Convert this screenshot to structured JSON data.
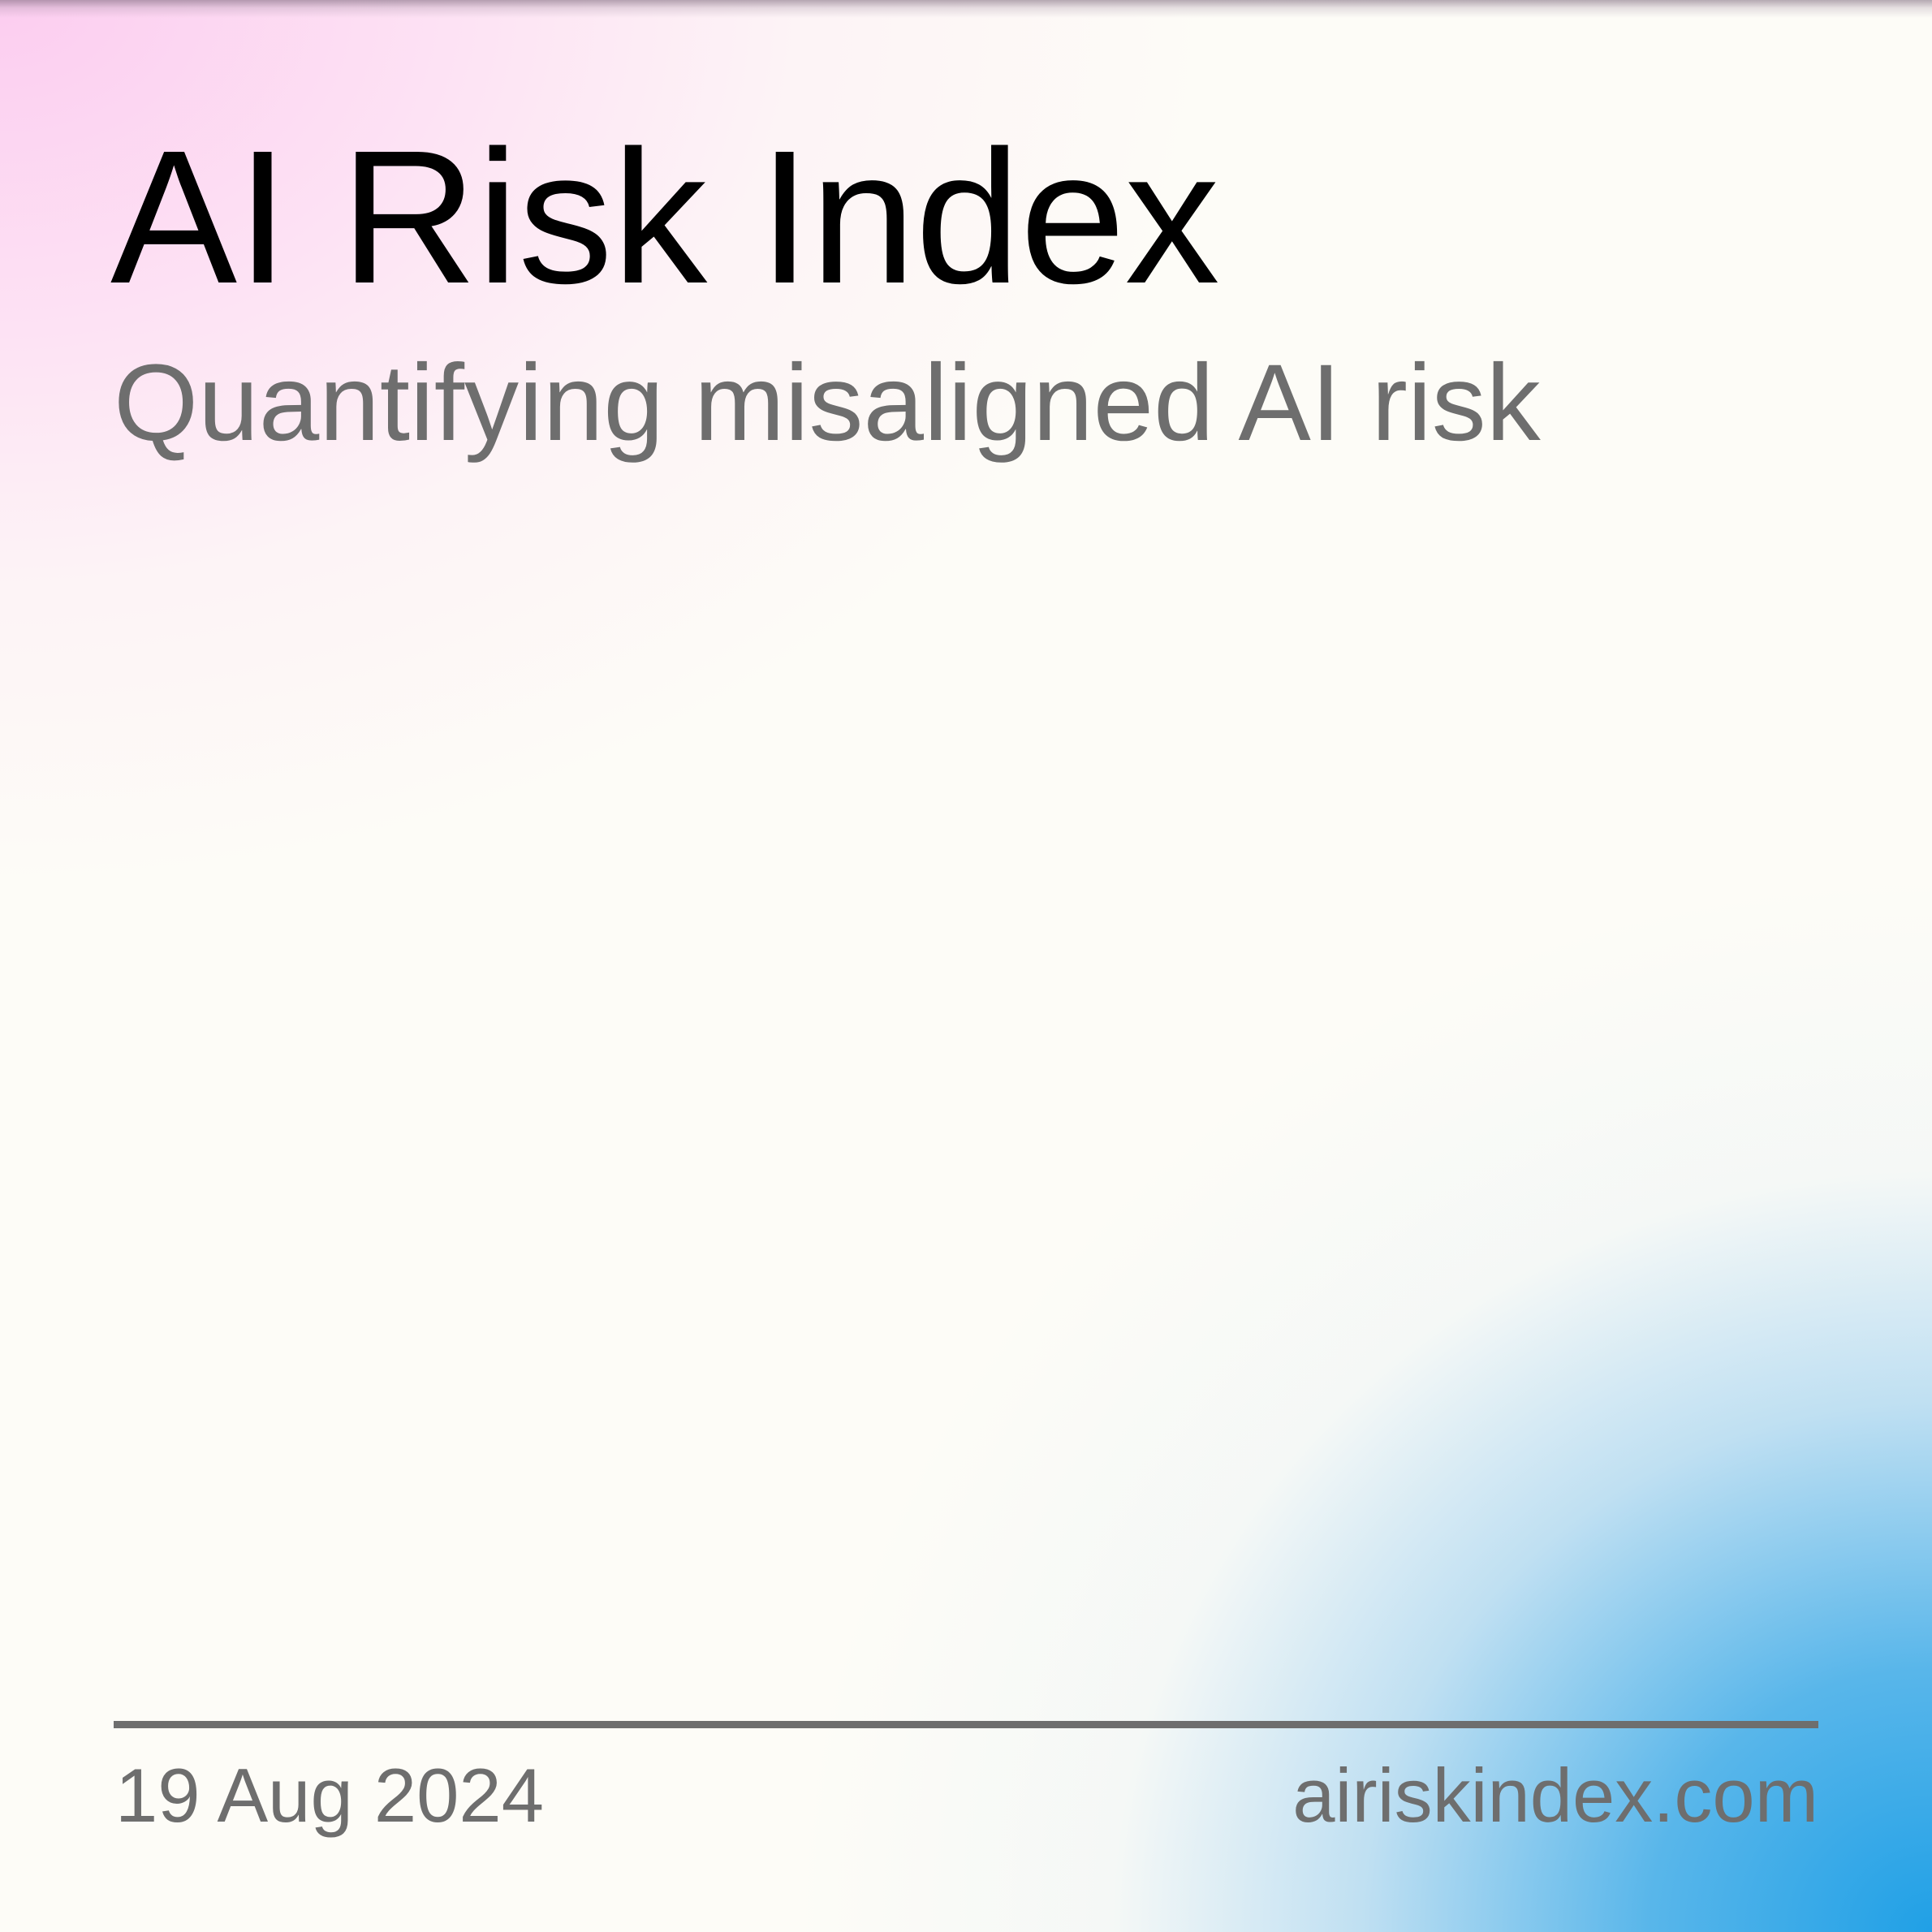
{
  "header": {
    "title": "AI Risk Index",
    "subtitle": "Quantifying misaligned AI risk"
  },
  "footer": {
    "date": "19 Aug 2024",
    "url": "airiskindex.com"
  },
  "colors": {
    "title": "#000000",
    "secondary_text": "#6e6e6e",
    "background": "#fdfcf7",
    "gradient_pink": "#fccdf0",
    "gradient_blue": "#20a0e6"
  }
}
